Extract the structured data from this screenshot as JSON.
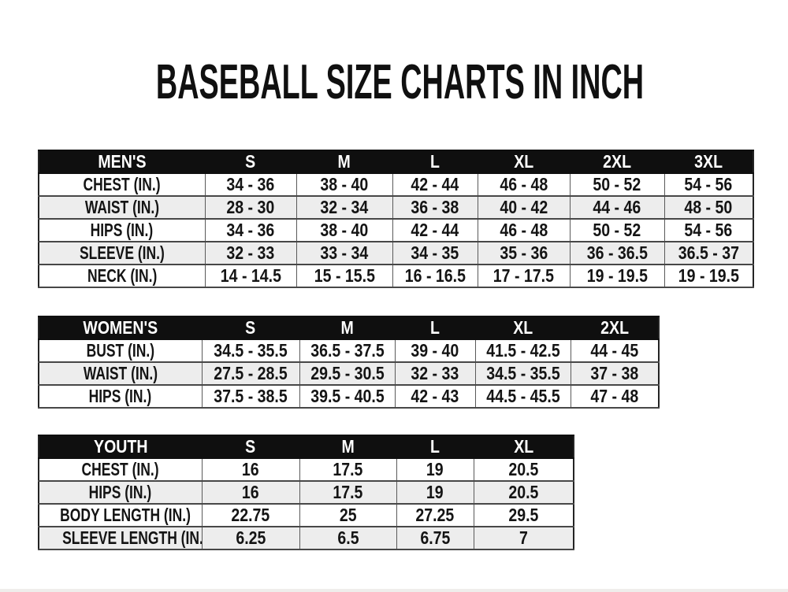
{
  "page": {
    "title": "BASEBALL SIZE CHARTS IN INCH"
  },
  "chart_data": [
    {
      "type": "table",
      "title": "MEN'S",
      "columns": [
        "MEN'S",
        "S",
        "M",
        "L",
        "XL",
        "2XL",
        "3XL"
      ],
      "rows": [
        [
          "CHEST (IN.)",
          "34 - 36",
          "38 - 40",
          "42 - 44",
          "46 - 48",
          "50 - 52",
          "54 - 56"
        ],
        [
          "WAIST (IN.)",
          "28 - 30",
          "32 - 34",
          "36 - 38",
          "40 - 42",
          "44 - 46",
          "48 - 50"
        ],
        [
          "HIPS (IN.)",
          "34 - 36",
          "38 - 40",
          "42 - 44",
          "46 - 48",
          "50 - 52",
          "54 - 56"
        ],
        [
          "SLEEVE (IN.)",
          "32 - 33",
          "33 - 34",
          "34 - 35",
          "35 - 36",
          "36 - 36.5",
          "36.5 - 37"
        ],
        [
          "NECK (IN.)",
          "14 - 14.5",
          "15 - 15.5",
          "16 - 16.5",
          "17 - 17.5",
          "19 - 19.5",
          "19 - 19.5"
        ]
      ]
    },
    {
      "type": "table",
      "title": "WOMEN'S",
      "columns": [
        "WOMEN'S",
        "S",
        "M",
        "L",
        "XL",
        "2XL"
      ],
      "rows": [
        [
          "BUST (IN.)",
          "34.5 - 35.5",
          "36.5 - 37.5",
          "39 - 40",
          "41.5 - 42.5",
          "44 - 45"
        ],
        [
          "WAIST (IN.)",
          "27.5 - 28.5",
          "29.5 - 30.5",
          "32 - 33",
          "34.5 - 35.5",
          "37 - 38"
        ],
        [
          "HIPS (IN.)",
          "37.5 - 38.5",
          "39.5 - 40.5",
          "42 - 43",
          "44.5 - 45.5",
          "47 - 48"
        ]
      ]
    },
    {
      "type": "table",
      "title": "YOUTH",
      "columns": [
        "YOUTH",
        "S",
        "M",
        "L",
        "XL"
      ],
      "rows": [
        [
          "CHEST (IN.)",
          "16",
          "17.5",
          "19",
          "20.5"
        ],
        [
          "HIPS (IN.)",
          "16",
          "17.5",
          "19",
          "20.5"
        ],
        [
          "BODY LENGTH (IN.)",
          "22.75",
          "25",
          "27.25",
          "29.5"
        ],
        [
          "SLEEVE LENGTH (IN.)",
          "6.25",
          "6.5",
          "6.75",
          "7"
        ]
      ]
    }
  ],
  "colors": {
    "header_bg": "#0f0f0f",
    "header_text": "#ffffff",
    "row_alt_bg": "#ededed",
    "border": "#474747",
    "text": "#141414",
    "page_bg": "#ffffff"
  }
}
